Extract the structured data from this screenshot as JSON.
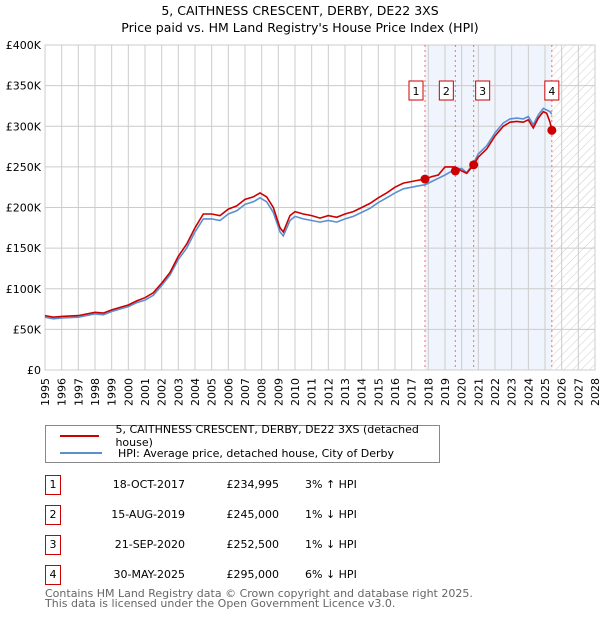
{
  "chart_data": {
    "type": "line",
    "title": "5, CAITHNESS CRESCENT, DERBY, DE22 3XS",
    "subtitle": "Price paid vs. HM Land Registry's House Price Index (HPI)",
    "xlim": [
      1995,
      2028
    ],
    "ylim": [
      0,
      400000
    ],
    "x_ticks": [
      "1995",
      "1996",
      "1997",
      "1998",
      "1999",
      "2000",
      "2001",
      "2002",
      "2003",
      "2004",
      "2005",
      "2006",
      "2007",
      "2008",
      "2009",
      "2010",
      "2011",
      "2012",
      "2013",
      "2014",
      "2015",
      "2016",
      "2017",
      "2018",
      "2019",
      "2020",
      "2021",
      "2022",
      "2023",
      "2024",
      "2025",
      "2026",
      "2027",
      "2028"
    ],
    "y_ticks": [
      {
        "v": 0,
        "label": "£0"
      },
      {
        "v": 50000,
        "label": "£50K"
      },
      {
        "v": 100000,
        "label": "£100K"
      },
      {
        "v": 150000,
        "label": "£150K"
      },
      {
        "v": 200000,
        "label": "£200K"
      },
      {
        "v": 250000,
        "label": "£250K"
      },
      {
        "v": 300000,
        "label": "£300K"
      },
      {
        "v": 350000,
        "label": "£350K"
      },
      {
        "v": 400000,
        "label": "£400K"
      }
    ],
    "grid": true,
    "shaded_range": [
      2017.8,
      2025.41
    ],
    "forecast_hatch_from": 2025.41,
    "series": [
      {
        "name": "5, CAITHNESS CRESCENT, DERBY, DE22 3XS (detached house)",
        "color": "#cc0000",
        "x": [
          1995,
          1995.5,
          1996,
          1997,
          1998,
          1998.5,
          1999,
          2000,
          2000.5,
          2001,
          2001.5,
          2002,
          2002.5,
          2003,
          2003.5,
          2004,
          2004.5,
          2005,
          2005.5,
          2006,
          2006.5,
          2007,
          2007.5,
          2007.9,
          2008.3,
          2008.7,
          2009.1,
          2009.3,
          2009.7,
          2010,
          2010.5,
          2011,
          2011.5,
          2012,
          2012.5,
          2013,
          2013.5,
          2014,
          2014.5,
          2015,
          2015.5,
          2016,
          2016.5,
          2017,
          2017.5,
          2017.8,
          2018.2,
          2018.6,
          2019,
          2019.6,
          2020,
          2020.3,
          2020.72,
          2021,
          2021.5,
          2022,
          2022.5,
          2022.9,
          2023.3,
          2023.7,
          2024,
          2024.3,
          2024.6,
          2024.9,
          2025.1,
          2025.3,
          2025.41
        ],
        "y": [
          67000,
          65000,
          66000,
          67000,
          71000,
          70000,
          74000,
          80000,
          85000,
          89000,
          95000,
          107000,
          120000,
          140000,
          155000,
          175000,
          192000,
          192000,
          190000,
          198000,
          202000,
          210000,
          213000,
          218000,
          213000,
          200000,
          175000,
          170000,
          190000,
          195000,
          192000,
          190000,
          187000,
          190000,
          188000,
          192000,
          195000,
          200000,
          205000,
          212000,
          218000,
          225000,
          230000,
          232000,
          234000,
          234995,
          238000,
          240000,
          250000,
          250000,
          245000,
          242000,
          252500,
          262000,
          272000,
          288000,
          300000,
          305000,
          306000,
          305000,
          308000,
          298000,
          310000,
          318000,
          316000,
          305000,
          295000
        ]
      },
      {
        "name": "HPI: Average price, detached house, City of Derby",
        "color": "#5b8fd0",
        "x": [
          1995,
          1995.5,
          1996,
          1997,
          1998,
          1998.5,
          1999,
          2000,
          2000.5,
          2001,
          2001.5,
          2002,
          2002.5,
          2003,
          2003.5,
          2004,
          2004.5,
          2005,
          2005.5,
          2006,
          2006.5,
          2007,
          2007.5,
          2007.9,
          2008.3,
          2008.7,
          2009.1,
          2009.3,
          2009.7,
          2010,
          2010.5,
          2011,
          2011.5,
          2012,
          2012.5,
          2013,
          2013.5,
          2014,
          2014.5,
          2015,
          2015.5,
          2016,
          2016.5,
          2017,
          2017.5,
          2017.8,
          2018.2,
          2018.6,
          2019,
          2019.6,
          2020,
          2020.3,
          2020.72,
          2021,
          2021.5,
          2022,
          2022.5,
          2022.9,
          2023.3,
          2023.7,
          2024,
          2024.3,
          2024.6,
          2024.9,
          2025.1,
          2025.3,
          2025.41
        ],
        "y": [
          65000,
          63000,
          64000,
          65000,
          69000,
          68000,
          72000,
          78000,
          83000,
          86000,
          92000,
          104000,
          117000,
          136000,
          150000,
          170000,
          186000,
          186000,
          184000,
          192000,
          196000,
          204000,
          207000,
          212000,
          207000,
          194000,
          170000,
          165000,
          184000,
          189000,
          186000,
          184000,
          182000,
          184000,
          182000,
          186000,
          189000,
          194000,
          199000,
          206000,
          212000,
          218000,
          223000,
          225000,
          227000,
          228000,
          232000,
          236000,
          240000,
          247000,
          248000,
          243000,
          255000,
          266000,
          276000,
          292000,
          304000,
          309000,
          310000,
          309000,
          312000,
          302000,
          314000,
          322000,
          320000,
          318000,
          315000
        ]
      }
    ],
    "sales": [
      {
        "n": "1",
        "x": 2017.8,
        "price": 234995
      },
      {
        "n": "2",
        "x": 2019.62,
        "price": 245000
      },
      {
        "n": "3",
        "x": 2020.72,
        "price": 252500
      },
      {
        "n": "4",
        "x": 2025.41,
        "price": 295000
      }
    ]
  },
  "title_line1": "5, CAITHNESS CRESCENT, DERBY, DE22 3XS",
  "title_line2": "Price paid vs. HM Land Registry's House Price Index (HPI)",
  "legend": {
    "red": "5, CAITHNESS CRESCENT, DERBY, DE22 3XS (detached house)",
    "blue": "HPI: Average price, detached house, City of Derby"
  },
  "table": [
    {
      "n": "1",
      "date": "18-OCT-2017",
      "price": "£234,995",
      "hpi": "3% ↑ HPI"
    },
    {
      "n": "2",
      "date": "15-AUG-2019",
      "price": "£245,000",
      "hpi": "1% ↓ HPI"
    },
    {
      "n": "3",
      "date": "21-SEP-2020",
      "price": "£252,500",
      "hpi": "1% ↓ HPI"
    },
    {
      "n": "4",
      "date": "30-MAY-2025",
      "price": "£295,000",
      "hpi": "6% ↓ HPI"
    }
  ],
  "footer": {
    "line1": "Contains HM Land Registry data © Crown copyright and database right 2025.",
    "line2": "This data is licensed under the Open Government Licence v3.0."
  }
}
